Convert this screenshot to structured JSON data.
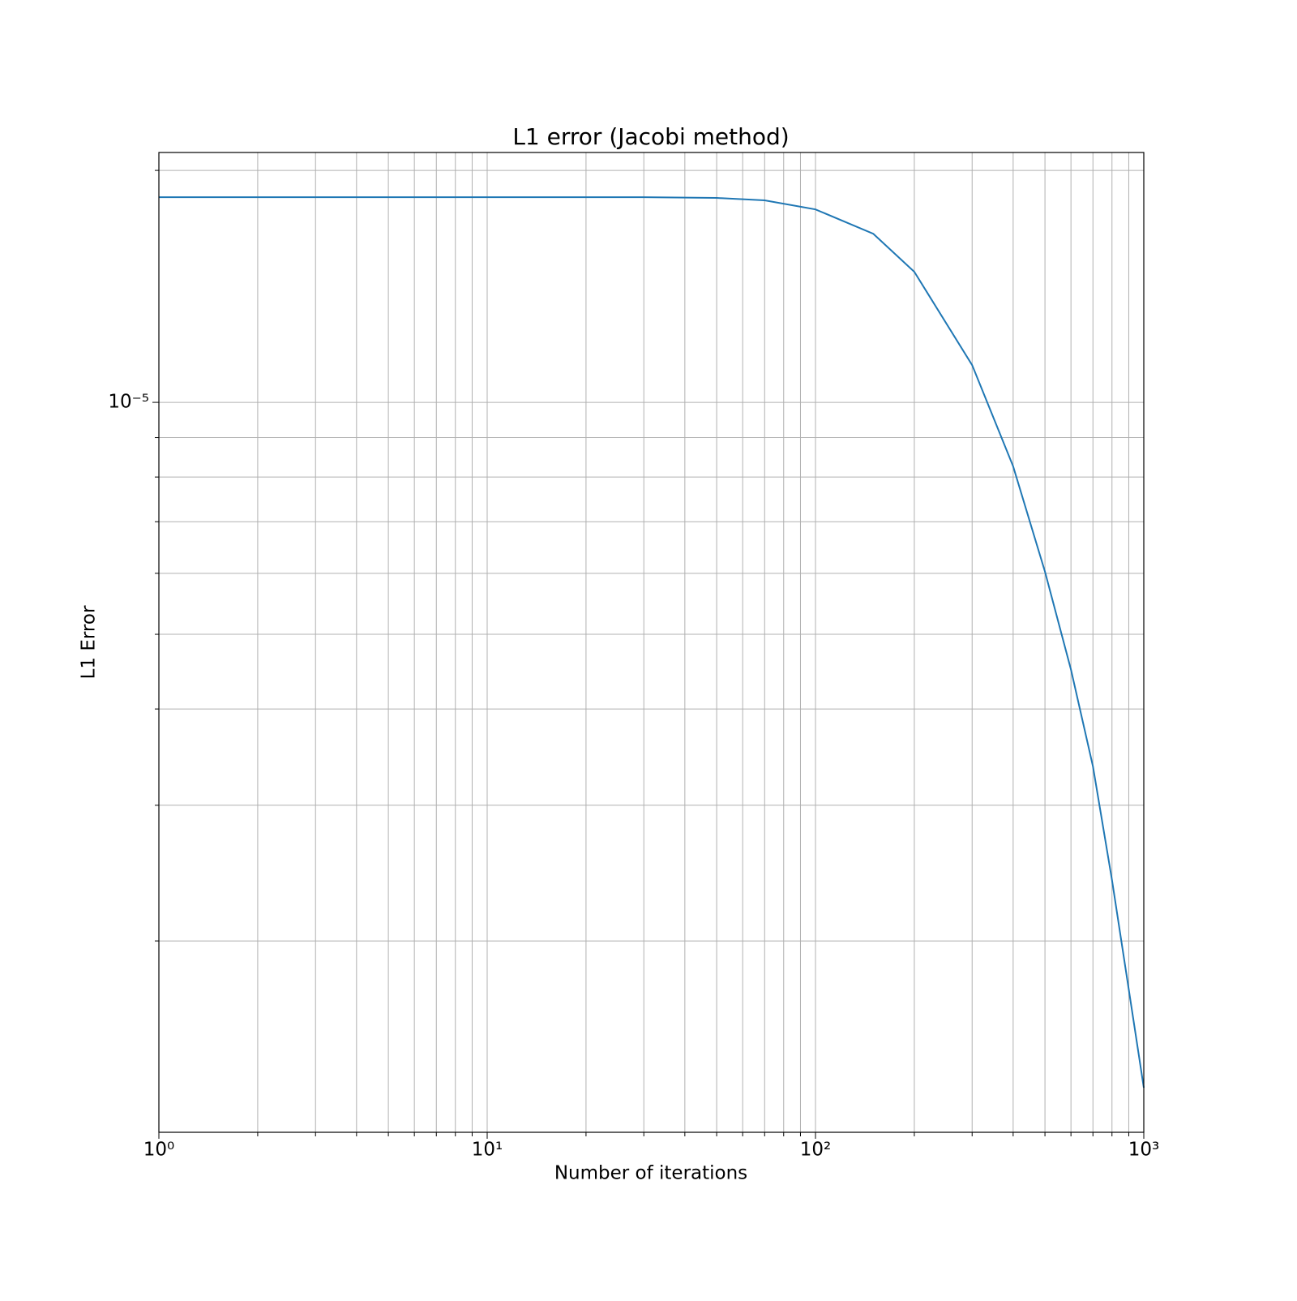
{
  "chart_data": {
    "type": "line",
    "title": "L1 error (Jacobi method)",
    "xlabel": "Number of iterations",
    "ylabel": "L1 Error",
    "xscale": "log",
    "yscale": "log",
    "grid": true,
    "x": [
      1,
      10,
      30,
      50,
      70,
      100,
      150,
      200,
      300,
      400,
      500,
      600,
      700,
      800,
      900,
      1000
    ],
    "series": [
      {
        "name": "L1 error",
        "color": "#1f77b4",
        "values": [
          1.846e-05,
          1.846e-05,
          1.846e-05,
          1.842e-05,
          1.829e-05,
          1.78e-05,
          1.655e-05,
          1.477e-05,
          1.118e-05,
          8.26e-06,
          6.03e-06,
          4.5e-06,
          3.37e-06,
          2.4e-06,
          1.73e-06,
          1.29e-06
        ]
      }
    ],
    "xlim": [
      1,
      1000
    ],
    "xticks": [
      {
        "value": 1,
        "label": "10⁰"
      },
      {
        "value": 10,
        "label": "10¹"
      },
      {
        "value": 100,
        "label": "10²"
      },
      {
        "value": 1000,
        "label": "10³"
      }
    ],
    "xminorticks": [
      2,
      3,
      4,
      5,
      6,
      7,
      8,
      9,
      20,
      30,
      40,
      50,
      60,
      70,
      80,
      90,
      200,
      300,
      400,
      500,
      600,
      700,
      800,
      900
    ],
    "ylim": [
      1.129e-06,
      2.11e-05
    ],
    "yticks": [
      {
        "value": 1e-05,
        "label": "10⁻⁵"
      }
    ],
    "yminorticks": [
      2e-06,
      3e-06,
      4e-06,
      5e-06,
      6e-06,
      7e-06,
      8e-06,
      9e-06,
      2e-05
    ]
  }
}
